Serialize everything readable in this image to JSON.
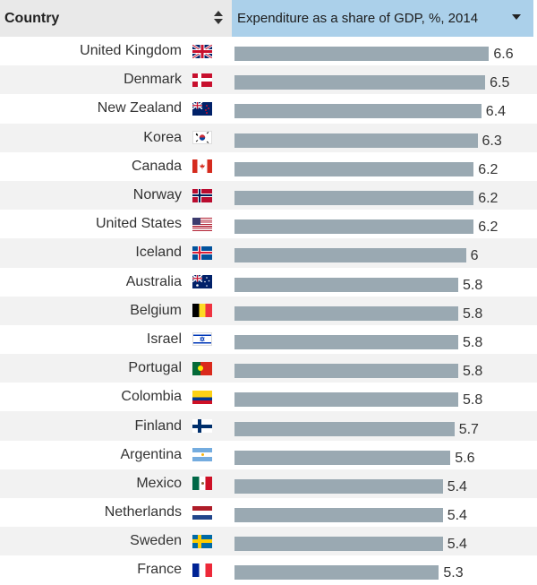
{
  "header": {
    "country_label": "Country",
    "metric_label": "Expenditure as a share of GDP, %, 2014"
  },
  "icons": {
    "sort": "sort-icon",
    "dropdown": "chevron-down-icon"
  },
  "colors": {
    "header_country_bg": "#e9e9e9",
    "header_metric_bg": "#abd0ea",
    "bar": "#9aa9b2",
    "row_alt": "#f2f2f2"
  },
  "chart_data": {
    "type": "bar",
    "orientation": "horizontal",
    "ylabel": "Expenditure as a share of GDP, %, 2014",
    "xlabel": "Country",
    "xlim": [
      0,
      7.75
    ],
    "grid": false,
    "categories": [
      "United Kingdom",
      "Denmark",
      "New Zealand",
      "Korea",
      "Canada",
      "Norway",
      "United States",
      "Iceland",
      "Australia",
      "Belgium",
      "Israel",
      "Portugal",
      "Colombia",
      "Finland",
      "Argentina",
      "Mexico",
      "Netherlands",
      "Sweden",
      "France"
    ],
    "values": [
      6.6,
      6.5,
      6.4,
      6.3,
      6.2,
      6.2,
      6.2,
      6,
      5.8,
      5.8,
      5.8,
      5.8,
      5.8,
      5.7,
      5.6,
      5.4,
      5.4,
      5.4,
      5.3
    ],
    "value_labels": [
      "6.6",
      "6.5",
      "6.4",
      "6.3",
      "6.2",
      "6.2",
      "6.2",
      "6",
      "5.8",
      "5.8",
      "5.8",
      "5.8",
      "5.8",
      "5.7",
      "5.6",
      "5.4",
      "5.4",
      "5.4",
      "5.3"
    ],
    "flags": [
      "uk-flag-icon",
      "denmark-flag-icon",
      "new-zealand-flag-icon",
      "korea-flag-icon",
      "canada-flag-icon",
      "norway-flag-icon",
      "usa-flag-icon",
      "iceland-flag-icon",
      "australia-flag-icon",
      "belgium-flag-icon",
      "israel-flag-icon",
      "portugal-flag-icon",
      "colombia-flag-icon",
      "finland-flag-icon",
      "argentina-flag-icon",
      "mexico-flag-icon",
      "netherlands-flag-icon",
      "sweden-flag-icon",
      "france-flag-icon"
    ]
  }
}
